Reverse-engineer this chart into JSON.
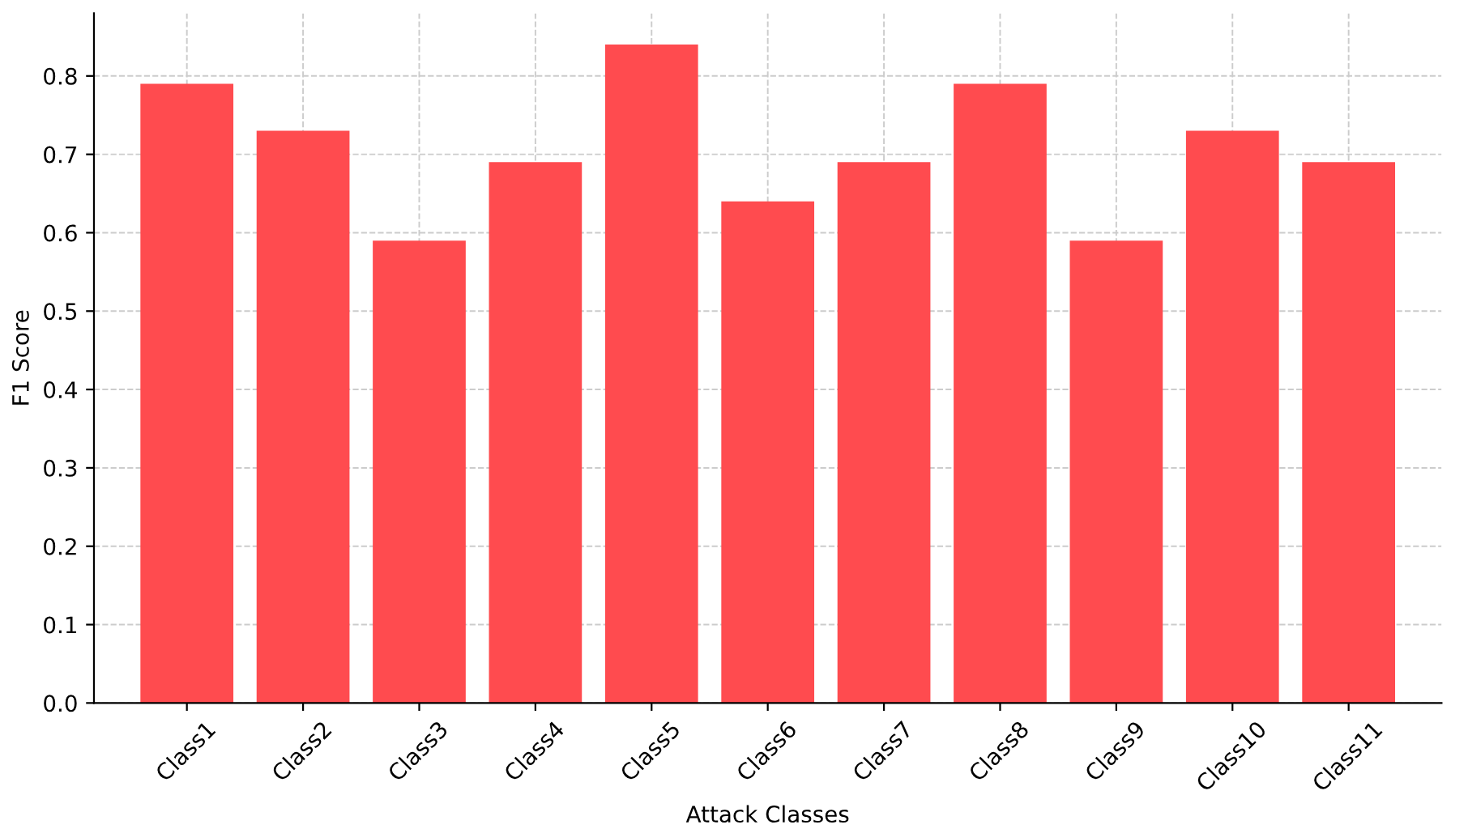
{
  "chart_data": {
    "type": "bar",
    "xlabel": "Attack Classes",
    "ylabel": "F1 Score",
    "categories": [
      "Class1",
      "Class2",
      "Class3",
      "Class4",
      "Class5",
      "Class6",
      "Class7",
      "Class8",
      "Class9",
      "Class10",
      "Class11"
    ],
    "values": [
      0.79,
      0.73,
      0.59,
      0.69,
      0.84,
      0.64,
      0.69,
      0.79,
      0.59,
      0.73,
      0.69
    ],
    "color": "#ff4b4f",
    "ylim": [
      0,
      0.88
    ],
    "yticks": [
      {
        "value": 0,
        "label": "0.0"
      },
      0.1,
      0.2,
      0.3,
      0.4,
      0.5,
      0.6,
      0.7,
      0.8
    ],
    "grid": true
  }
}
